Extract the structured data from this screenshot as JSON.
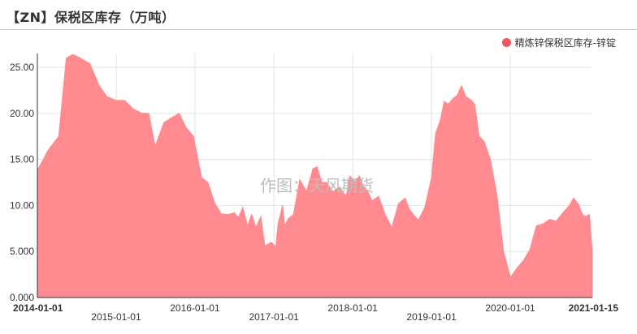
{
  "title": "【ZN】保税区库存（万吨）",
  "watermark": "作图：天风期货",
  "colors": {
    "series": "#ff8a8f",
    "legend_dot": "#f2545b",
    "grid": "#e3e3e3",
    "axis": "#333333"
  },
  "chart_data": {
    "type": "area",
    "title": "【ZN】保税区库存（万吨）",
    "xlabel": "",
    "ylabel": "",
    "ylim": [
      0,
      26.5
    ],
    "x_range": [
      "2014-01-01",
      "2021-01-15"
    ],
    "y_ticks": [
      "0.000",
      "5.000",
      "10.00",
      "15.00",
      "20.00",
      "25.00"
    ],
    "x_ticks_row1": [
      "2014-01-01",
      "2016-01-01",
      "2018-01-01",
      "2020-01-01",
      "2021-01-15"
    ],
    "x_ticks_row2": [
      "2015-01-01",
      "2017-01-01",
      "2019-01-01"
    ],
    "grid": true,
    "legend_position": "top-right",
    "series": [
      {
        "name": "精炼锌保税区库存-锌锭",
        "points": [
          [
            "2014-01-01",
            13.8
          ],
          [
            "2014-02-20",
            16.0
          ],
          [
            "2014-04-10",
            17.5
          ],
          [
            "2014-05-15",
            26.0
          ],
          [
            "2014-06-15",
            26.4
          ],
          [
            "2014-07-20",
            26.0
          ],
          [
            "2014-09-01",
            25.4
          ],
          [
            "2014-10-15",
            23.0
          ],
          [
            "2014-11-20",
            21.8
          ],
          [
            "2015-01-01",
            21.4
          ],
          [
            "2015-02-10",
            21.4
          ],
          [
            "2015-03-20",
            20.5
          ],
          [
            "2015-05-01",
            20.0
          ],
          [
            "2015-06-01",
            20.0
          ],
          [
            "2015-07-01",
            16.4
          ],
          [
            "2015-08-10",
            19.0
          ],
          [
            "2015-09-20",
            19.6
          ],
          [
            "2015-10-20",
            20.0
          ],
          [
            "2015-11-20",
            18.5
          ],
          [
            "2015-12-25",
            17.5
          ],
          [
            "2016-02-01",
            13.0
          ],
          [
            "2016-03-01",
            12.5
          ],
          [
            "2016-04-01",
            10.3
          ],
          [
            "2016-05-01",
            9.1
          ],
          [
            "2016-06-01",
            9.0
          ],
          [
            "2016-07-01",
            9.2
          ],
          [
            "2016-07-20",
            8.7
          ],
          [
            "2016-08-10",
            9.8
          ],
          [
            "2016-09-01",
            7.8
          ],
          [
            "2016-09-20",
            9.0
          ],
          [
            "2016-10-10",
            7.6
          ],
          [
            "2016-11-01",
            8.8
          ],
          [
            "2016-11-20",
            5.6
          ],
          [
            "2016-12-20",
            6.0
          ],
          [
            "2017-01-10",
            5.5
          ],
          [
            "2017-01-20",
            8.0
          ],
          [
            "2017-02-10",
            10.0
          ],
          [
            "2017-02-20",
            7.8
          ],
          [
            "2017-03-10",
            8.6
          ],
          [
            "2017-04-01",
            9.0
          ],
          [
            "2017-05-01",
            12.8
          ],
          [
            "2017-06-01",
            11.5
          ],
          [
            "2017-07-01",
            14.0
          ],
          [
            "2017-07-20",
            14.2
          ],
          [
            "2017-08-10",
            12.5
          ],
          [
            "2017-09-01",
            12.5
          ],
          [
            "2017-10-01",
            11.5
          ],
          [
            "2017-11-01",
            12.0
          ],
          [
            "2017-12-01",
            11.0
          ],
          [
            "2017-12-20",
            13.2
          ],
          [
            "2018-01-10",
            12.6
          ],
          [
            "2018-02-01",
            13.2
          ],
          [
            "2018-02-20",
            12.0
          ],
          [
            "2018-03-10",
            11.6
          ],
          [
            "2018-04-01",
            10.5
          ],
          [
            "2018-05-01",
            11.0
          ],
          [
            "2018-06-01",
            9.0
          ],
          [
            "2018-07-01",
            7.6
          ],
          [
            "2018-08-01",
            10.2
          ],
          [
            "2018-09-01",
            10.8
          ],
          [
            "2018-09-20",
            9.6
          ],
          [
            "2018-10-10",
            9.0
          ],
          [
            "2018-11-01",
            8.4
          ],
          [
            "2018-12-01",
            9.8
          ],
          [
            "2019-01-01",
            13.0
          ],
          [
            "2019-01-20",
            17.8
          ],
          [
            "2019-02-10",
            19.2
          ],
          [
            "2019-03-01",
            21.3
          ],
          [
            "2019-03-20",
            21.0
          ],
          [
            "2019-04-10",
            21.6
          ],
          [
            "2019-05-01",
            22.0
          ],
          [
            "2019-05-20",
            23.0
          ],
          [
            "2019-06-10",
            21.8
          ],
          [
            "2019-07-01",
            21.5
          ],
          [
            "2019-07-20",
            21.0
          ],
          [
            "2019-08-10",
            17.5
          ],
          [
            "2019-09-01",
            17.0
          ],
          [
            "2019-10-01",
            15.0
          ],
          [
            "2019-11-01",
            11.0
          ],
          [
            "2019-12-01",
            5.0
          ],
          [
            "2020-01-01",
            2.2
          ],
          [
            "2020-02-01",
            3.2
          ],
          [
            "2020-03-01",
            4.0
          ],
          [
            "2020-04-01",
            5.2
          ],
          [
            "2020-05-01",
            7.8
          ],
          [
            "2020-06-01",
            8.0
          ],
          [
            "2020-07-01",
            8.5
          ],
          [
            "2020-08-01",
            8.3
          ],
          [
            "2020-09-01",
            9.2
          ],
          [
            "2020-10-01",
            10.0
          ],
          [
            "2020-10-20",
            10.8
          ],
          [
            "2020-11-10",
            10.2
          ],
          [
            "2020-12-01",
            9.0
          ],
          [
            "2020-12-15",
            8.8
          ],
          [
            "2020-12-31",
            9.0
          ],
          [
            "2021-01-01",
            9.1
          ],
          [
            "2021-01-15",
            5.0
          ]
        ]
      }
    ]
  }
}
